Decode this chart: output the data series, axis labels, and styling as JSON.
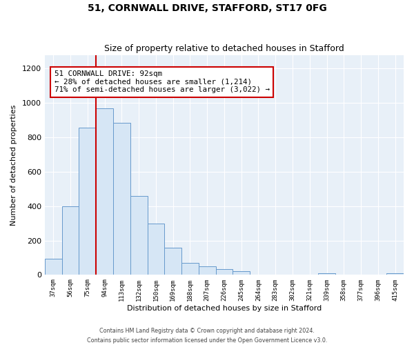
{
  "title": "51, CORNWALL DRIVE, STAFFORD, ST17 0FG",
  "subtitle": "Size of property relative to detached houses in Stafford",
  "xlabel": "Distribution of detached houses by size in Stafford",
  "ylabel": "Number of detached properties",
  "categories": [
    "37sqm",
    "56sqm",
    "75sqm",
    "94sqm",
    "113sqm",
    "132sqm",
    "150sqm",
    "169sqm",
    "188sqm",
    "207sqm",
    "226sqm",
    "245sqm",
    "264sqm",
    "283sqm",
    "302sqm",
    "321sqm",
    "339sqm",
    "358sqm",
    "377sqm",
    "396sqm",
    "415sqm"
  ],
  "values": [
    95,
    400,
    855,
    970,
    885,
    460,
    298,
    160,
    72,
    50,
    33,
    20,
    0,
    0,
    0,
    0,
    10,
    0,
    0,
    0,
    10
  ],
  "bar_color": "#d6e6f5",
  "bar_edge_color": "#6699cc",
  "property_line_color": "#cc0000",
  "property_line_index": 3,
  "annotation_text_line1": "51 CORNWALL DRIVE: 92sqm",
  "annotation_text_line2": "← 28% of detached houses are smaller (1,214)",
  "annotation_text_line3": "71% of semi-detached houses are larger (3,022) →",
  "annotation_box_color": "#ffffff",
  "annotation_box_edge_color": "#cc0000",
  "footer_line1": "Contains HM Land Registry data © Crown copyright and database right 2024.",
  "footer_line2": "Contains public sector information licensed under the Open Government Licence v3.0.",
  "ylim": [
    0,
    1280
  ],
  "plot_bg_color": "#e8f0f8",
  "fig_bg_color": "#ffffff",
  "grid_color": "#ffffff"
}
